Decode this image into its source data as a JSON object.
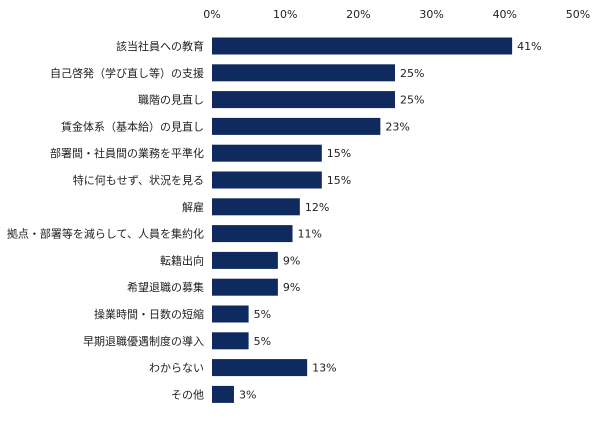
{
  "chart_data": {
    "type": "bar",
    "orientation": "horizontal",
    "title": "",
    "xlabel": "",
    "ylabel": "",
    "xlim": [
      0,
      50
    ],
    "ticks": [
      0,
      10,
      20,
      30,
      40,
      50
    ],
    "tick_labels": [
      "0%",
      "10%",
      "20%",
      "30%",
      "40%",
      "50%"
    ],
    "tick_position": "top",
    "grid": false,
    "legend": "none",
    "value_suffix": "%",
    "bar_color": "#0f2a5e",
    "categories": [
      "該当社員への教育",
      "自己啓発（学び直し等）の支援",
      "職階の見直し",
      "賃金体系（基本給）の見直し",
      "部署間・社員間の業務を平準化",
      "特に何もせず、状況を見る",
      "解雇",
      "拠点・部署等を減らして、人員を集約化",
      "転籍出向",
      "希望退職の募集",
      "操業時間・日数の短縮",
      "早期退職優遇制度の導入",
      "わからない",
      "その他"
    ],
    "values": [
      41,
      25,
      25,
      23,
      15,
      15,
      12,
      11,
      9,
      9,
      5,
      5,
      13,
      3
    ],
    "value_labels": [
      "41%",
      "25%",
      "25%",
      "23%",
      "15%",
      "15%",
      "12%",
      "11%",
      "9%",
      "9%",
      "5%",
      "5%",
      "13%",
      "3%"
    ]
  }
}
